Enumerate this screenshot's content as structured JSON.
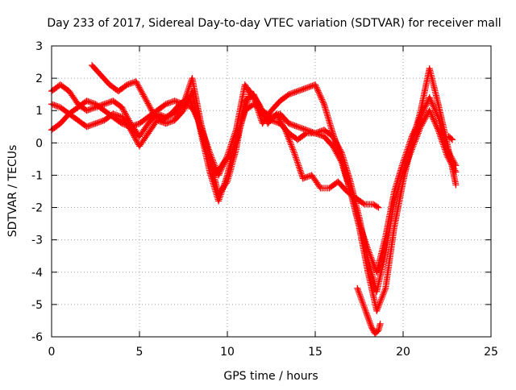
{
  "chart_data": {
    "type": "scatter",
    "title": "Day 233 of 2017, Sidereal Day-to-day VTEC variation (SDTVAR) for receiver mall",
    "xlabel": "GPS time / hours",
    "ylabel": "SDTVAR / TECUs",
    "xlim": [
      0,
      25
    ],
    "ylim": [
      -6,
      3
    ],
    "xticks": [
      "0",
      "5",
      "10",
      "15",
      "20",
      "25"
    ],
    "yticks": [
      "-6",
      "-5",
      "-4",
      "-3",
      "-2",
      "-1",
      "0",
      "1",
      "2",
      "3"
    ],
    "grid": true,
    "legend": "none",
    "marker": "plus",
    "color": "#ff0000",
    "series": [
      {
        "x": [
          0.0,
          0.5,
          1.0,
          1.5,
          2.0,
          2.5,
          3.0,
          3.5,
          4.0,
          4.5,
          5.0,
          5.5,
          6.0,
          6.5,
          7.0,
          7.5,
          8.0,
          8.5,
          9.0,
          9.5,
          10.0,
          10.5,
          11.0,
          11.5,
          12.0,
          12.5,
          13.0,
          13.5,
          14.0,
          14.5,
          15.0,
          15.5,
          16.0,
          16.5,
          17.0,
          17.5,
          18.0,
          18.5,
          19.0,
          19.5,
          20.0,
          20.5,
          21.0,
          21.5,
          22.0,
          22.5,
          23.0
        ],
        "y": [
          1.6,
          1.8,
          1.6,
          1.2,
          1.0,
          1.1,
          1.2,
          1.3,
          1.1,
          0.6,
          0.2,
          0.6,
          0.9,
          0.8,
          0.9,
          1.2,
          2.0,
          0.6,
          -0.5,
          -1.6,
          -1.2,
          -0.2,
          1.3,
          1.5,
          0.9,
          0.7,
          0.6,
          0.3,
          0.1,
          0.3,
          0.3,
          0.2,
          -0.1,
          -0.6,
          -1.5,
          -2.5,
          -3.3,
          -4.0,
          -2.9,
          -1.5,
          -0.6,
          0.2,
          0.8,
          1.4,
          0.8,
          -0.2,
          -0.7
        ]
      },
      {
        "x": [
          0.0,
          0.5,
          1.0,
          1.5,
          2.0,
          2.5,
          3.0,
          3.5,
          4.0,
          4.5,
          5.0,
          5.5,
          6.0,
          6.5,
          7.0,
          7.5,
          8.0,
          8.5,
          9.0,
          9.5,
          10.0,
          10.5,
          11.0,
          11.5,
          12.0,
          12.5,
          13.0,
          13.5,
          14.0,
          14.5,
          15.0,
          15.5,
          16.0,
          16.5,
          17.0,
          17.5,
          18.0,
          18.5,
          19.0,
          19.5,
          20.0,
          20.5,
          21.0,
          21.5,
          22.0,
          22.5,
          23.0
        ],
        "y": [
          1.2,
          1.1,
          0.9,
          0.7,
          0.5,
          0.6,
          0.7,
          0.9,
          0.8,
          0.4,
          -0.1,
          0.3,
          0.7,
          0.6,
          0.7,
          1.0,
          1.6,
          0.3,
          -0.9,
          -1.8,
          -1.0,
          0.2,
          1.0,
          1.2,
          1.0,
          0.8,
          0.9,
          0.6,
          0.5,
          0.4,
          0.3,
          0.4,
          0.2,
          -0.3,
          -1.2,
          -2.3,
          -3.6,
          -4.6,
          -3.4,
          -1.8,
          -0.9,
          -0.2,
          0.5,
          1.0,
          0.4,
          -0.4,
          -0.9
        ]
      },
      {
        "x": [
          0.0,
          0.5,
          1.0,
          1.5,
          2.0,
          2.5,
          3.0,
          3.5,
          4.0,
          4.5,
          5.0,
          5.5,
          6.0,
          6.5,
          7.0,
          7.5,
          8.0,
          8.5,
          9.0,
          9.5,
          10.0,
          10.5,
          11.0,
          11.5,
          12.0,
          12.5,
          13.0,
          13.5,
          14.0,
          14.5,
          15.0,
          15.5,
          16.0,
          16.5,
          17.0,
          17.5,
          18.0,
          18.5,
          19.0,
          19.5,
          20.0,
          20.5,
          21.0,
          21.5,
          22.0,
          22.5,
          23.0
        ],
        "y": [
          0.4,
          0.6,
          0.9,
          1.1,
          1.3,
          1.2,
          1.0,
          0.8,
          0.6,
          0.5,
          0.6,
          0.8,
          1.0,
          1.2,
          1.3,
          1.2,
          1.1,
          0.5,
          -0.3,
          -1.0,
          -0.4,
          0.4,
          1.8,
          1.4,
          0.6,
          1.0,
          1.3,
          1.5,
          1.6,
          1.7,
          1.8,
          1.2,
          0.3,
          -0.5,
          -1.5,
          -2.6,
          -4.0,
          -5.2,
          -4.5,
          -2.6,
          -1.2,
          0.0,
          1.0,
          2.3,
          1.2,
          0.0,
          -1.3
        ]
      },
      {
        "x": [
          2.3,
          2.8,
          3.3,
          3.8,
          4.3,
          4.8,
          5.3,
          5.8,
          6.3,
          6.8,
          7.3,
          7.8,
          8.3,
          8.8,
          9.3,
          9.8,
          10.3,
          10.8,
          11.3,
          11.8,
          12.3,
          12.8,
          13.3,
          13.8,
          14.3,
          14.8,
          15.3,
          15.8,
          16.3,
          16.8,
          17.3,
          17.8,
          18.3,
          18.6
        ],
        "y": [
          2.4,
          2.1,
          1.8,
          1.6,
          1.8,
          1.9,
          1.4,
          0.9,
          0.7,
          0.9,
          1.2,
          1.4,
          0.8,
          -0.2,
          -1.0,
          -0.6,
          -0.3,
          0.6,
          1.6,
          1.2,
          0.6,
          0.9,
          0.4,
          -0.3,
          -1.1,
          -1.0,
          -1.4,
          -1.4,
          -1.2,
          -1.5,
          -1.7,
          -1.9,
          -1.9,
          -2.0
        ]
      },
      {
        "x": [
          17.4,
          17.6,
          17.8,
          18.0,
          18.2,
          18.4,
          18.6,
          18.7
        ],
        "y": [
          -4.5,
          -4.8,
          -5.1,
          -5.4,
          -5.7,
          -5.9,
          -5.8,
          -5.6
        ]
      },
      {
        "x": [
          22.6,
          22.8
        ],
        "y": [
          0.2,
          0.1
        ]
      }
    ]
  }
}
